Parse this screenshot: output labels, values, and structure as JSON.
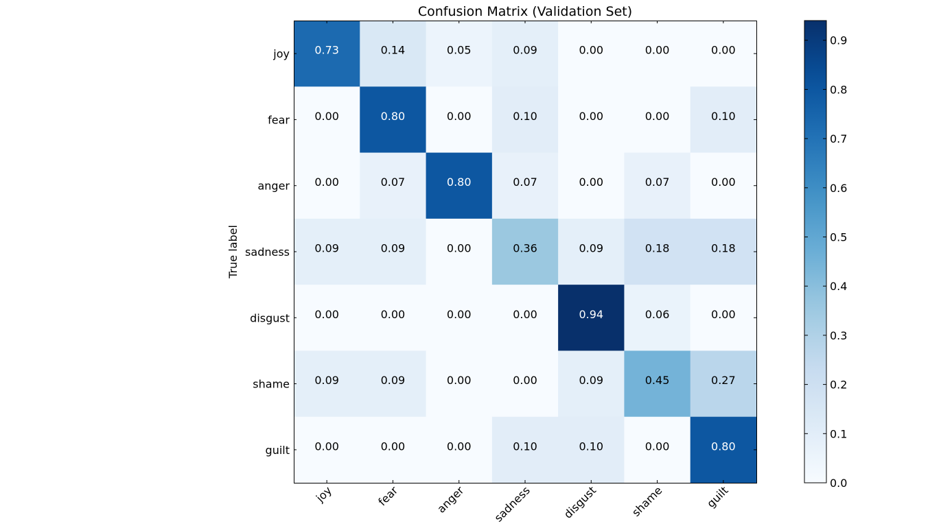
{
  "chart_data": {
    "type": "heatmap",
    "title": "Confusion Matrix (Validation Set)",
    "ylabel": "True label",
    "xlabel": "",
    "x_categories": [
      "joy",
      "fear",
      "anger",
      "sadness",
      "disgust",
      "shame",
      "guilt"
    ],
    "y_categories": [
      "joy",
      "fear",
      "anger",
      "sadness",
      "disgust",
      "shame",
      "guilt"
    ],
    "values": [
      [
        0.73,
        0.14,
        0.05,
        0.09,
        0.0,
        0.0,
        0.0
      ],
      [
        0.0,
        0.8,
        0.0,
        0.1,
        0.0,
        0.0,
        0.1
      ],
      [
        0.0,
        0.07,
        0.8,
        0.07,
        0.0,
        0.07,
        0.0
      ],
      [
        0.09,
        0.09,
        0.0,
        0.36,
        0.09,
        0.18,
        0.18
      ],
      [
        0.0,
        0.0,
        0.0,
        0.0,
        0.94,
        0.06,
        0.0
      ],
      [
        0.09,
        0.09,
        0.0,
        0.0,
        0.09,
        0.45,
        0.27
      ],
      [
        0.0,
        0.0,
        0.0,
        0.1,
        0.1,
        0.0,
        0.8
      ]
    ],
    "value_format": "2-decimal",
    "colormap": "Blues",
    "colorbar": {
      "range": [
        0.0,
        0.94
      ],
      "ticks": [
        0.0,
        0.1,
        0.2,
        0.3,
        0.4,
        0.5,
        0.6,
        0.7,
        0.8,
        0.9
      ],
      "tick_labels": [
        "0.0",
        "0.1",
        "0.2",
        "0.3",
        "0.4",
        "0.5",
        "0.6",
        "0.7",
        "0.8",
        "0.9"
      ]
    },
    "x_tick_rotation": "45 degrees",
    "grid": false,
    "text_color_threshold": 0.47,
    "colors": {
      "text_dark": "#000000",
      "text_light": "#ffffff",
      "frame": "#000000"
    }
  }
}
